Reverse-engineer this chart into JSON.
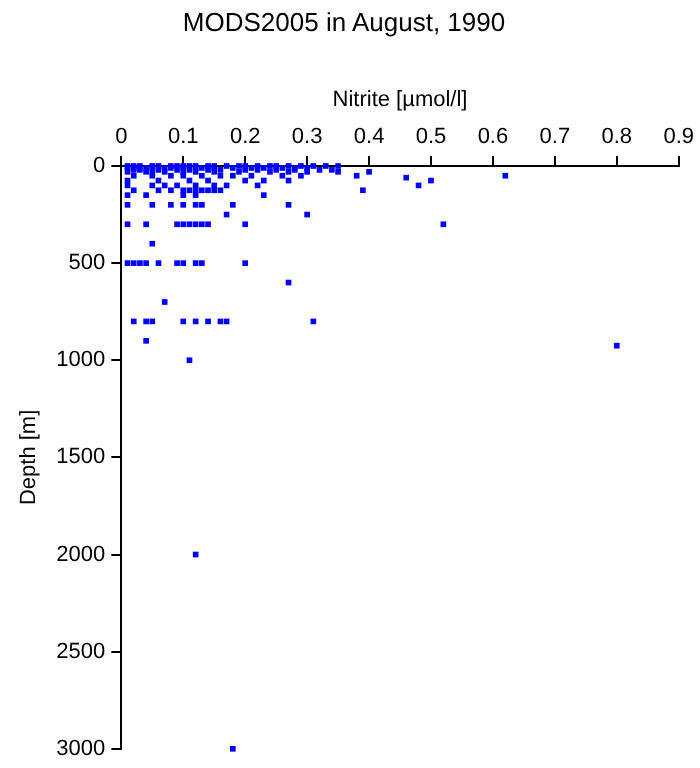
{
  "chart_data": {
    "type": "scatter",
    "title": "MODS2005 in August, 1990",
    "xlabel": "Nitrite [µmol/l]",
    "ylabel": "Depth [m]",
    "xlim": [
      0,
      0.9
    ],
    "xticks": [
      0,
      0.1,
      0.2,
      0.3,
      0.4,
      0.5,
      0.6,
      0.7,
      0.8,
      0.9
    ],
    "ylim": [
      3000,
      0
    ],
    "yticks": [
      0,
      500,
      1000,
      1500,
      2000,
      2500,
      3000
    ],
    "grid": false,
    "marker": "square",
    "series": [
      {
        "color": "#0000ff",
        "x": [
          0.01,
          0.02,
          0.03,
          0.05,
          0.06,
          0.08,
          0.09,
          0.1,
          0.11,
          0.12,
          0.14,
          0.15,
          0.17,
          0.19,
          0.2,
          0.22,
          0.24,
          0.25,
          0.27,
          0.29,
          0.31,
          0.33,
          0.35,
          0.01,
          0.02,
          0.04,
          0.05,
          0.07,
          0.08,
          0.1,
          0.12,
          0.13,
          0.15,
          0.18,
          0.21,
          0.23,
          0.26,
          0.28,
          0.3,
          0.02,
          0.03,
          0.06,
          0.09,
          0.11,
          0.14,
          0.16,
          0.2,
          0.22,
          0.25,
          0.28,
          0.32,
          0.34,
          0.01,
          0.04,
          0.05,
          0.07,
          0.1,
          0.12,
          0.15,
          0.19,
          0.24,
          0.27,
          0.3,
          0.35,
          0.4,
          0.02,
          0.05,
          0.08,
          0.1,
          0.13,
          0.16,
          0.18,
          0.21,
          0.26,
          0.29,
          0.38,
          0.62,
          0.46,
          0.01,
          0.06,
          0.11,
          0.14,
          0.2,
          0.23,
          0.27,
          0.5,
          0.01,
          0.05,
          0.07,
          0.09,
          0.12,
          0.15,
          0.17,
          0.22,
          0.48,
          0.02,
          0.06,
          0.08,
          0.1,
          0.11,
          0.12,
          0.13,
          0.14,
          0.15,
          0.16,
          0.39,
          0.01,
          0.04,
          0.1,
          0.12,
          0.23,
          0.01,
          0.05,
          0.08,
          0.1,
          0.12,
          0.13,
          0.18,
          0.27,
          0.17,
          0.3,
          0.01,
          0.04,
          0.09,
          0.1,
          0.11,
          0.12,
          0.13,
          0.14,
          0.2,
          0.52,
          0.05,
          0.01,
          0.02,
          0.03,
          0.04,
          0.06,
          0.09,
          0.1,
          0.12,
          0.13,
          0.2,
          0.27,
          0.07,
          0.02,
          0.04,
          0.05,
          0.1,
          0.12,
          0.14,
          0.16,
          0.17,
          0.31,
          0.04,
          0.8,
          0.11,
          0.12,
          0.18
        ],
        "values": [
          0,
          0,
          0,
          0,
          0,
          0,
          0,
          0,
          0,
          0,
          0,
          0,
          0,
          0,
          0,
          0,
          0,
          0,
          0,
          0,
          0,
          0,
          0,
          10,
          10,
          10,
          10,
          10,
          10,
          10,
          10,
          10,
          10,
          10,
          10,
          10,
          10,
          10,
          10,
          20,
          20,
          20,
          20,
          20,
          20,
          20,
          20,
          20,
          20,
          20,
          20,
          20,
          30,
          30,
          30,
          30,
          30,
          30,
          30,
          30,
          30,
          30,
          30,
          30,
          30,
          50,
          50,
          50,
          50,
          50,
          50,
          50,
          50,
          50,
          50,
          50,
          50,
          60,
          75,
          75,
          75,
          75,
          75,
          75,
          75,
          75,
          100,
          100,
          100,
          100,
          100,
          100,
          100,
          100,
          100,
          125,
          125,
          125,
          125,
          125,
          125,
          125,
          125,
          125,
          125,
          125,
          150,
          150,
          150,
          150,
          150,
          200,
          200,
          200,
          200,
          200,
          200,
          200,
          200,
          250,
          250,
          300,
          300,
          300,
          300,
          300,
          300,
          300,
          300,
          300,
          300,
          400,
          500,
          500,
          500,
          500,
          500,
          500,
          500,
          500,
          500,
          500,
          600,
          700,
          800,
          800,
          800,
          800,
          800,
          800,
          800,
          800,
          800,
          900,
          925,
          1000,
          2000,
          3000
        ]
      }
    ]
  }
}
